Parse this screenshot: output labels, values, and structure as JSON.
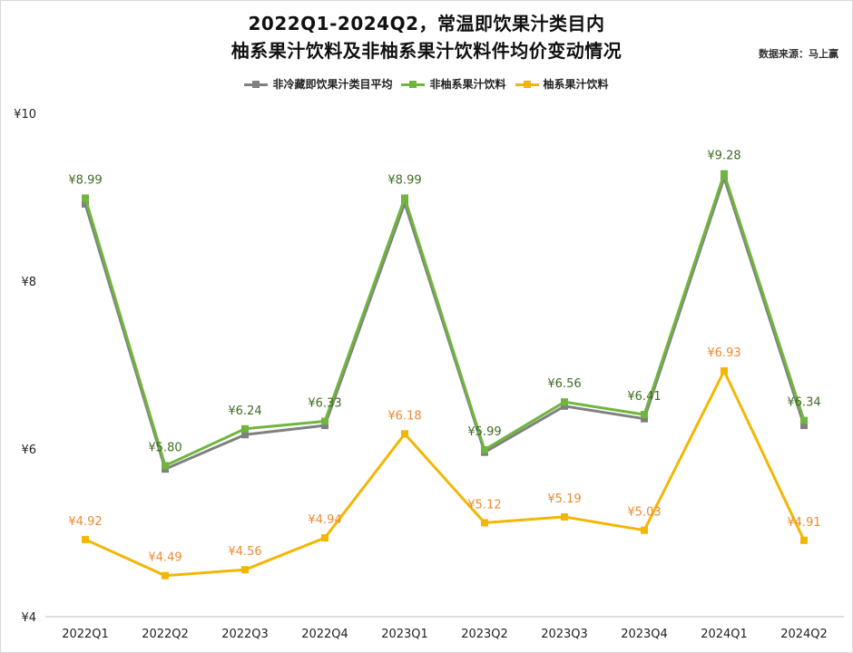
{
  "title_line1": "2022Q1-2024Q2，常温即饮果汁类目内",
  "title_line2": "柚系果汁饮料及非柚系果汁饮料件均价变动情况",
  "source": "数据来源：马上赢",
  "colors": {
    "avg": "#808080",
    "non_citrus": "#70b53e",
    "citrus": "#f2b705",
    "non_citrus_label": "#3f6b22",
    "citrus_label": "#ed8a2f",
    "axis": "#222222"
  },
  "chart_data": {
    "type": "line",
    "title": "2022Q1-2024Q2，常温即饮果汁类目内柚系果汁饮料及非柚系果汁饮料件均价变动情况",
    "xlabel": "",
    "ylabel": "",
    "ylim": [
      4,
      10
    ],
    "yticks": [
      4,
      6,
      8,
      10
    ],
    "ytick_labels": [
      "¥4",
      "¥6",
      "¥8",
      "¥10"
    ],
    "grid": false,
    "legend_position": "top",
    "categories": [
      "2022Q1",
      "2022Q2",
      "2022Q3",
      "2022Q4",
      "2023Q1",
      "2023Q2",
      "2023Q3",
      "2023Q4",
      "2024Q1",
      "2024Q2"
    ],
    "series": [
      {
        "key": "avg",
        "name": "非冷藏即饮果汁类目平均",
        "values": [
          8.92,
          5.76,
          6.17,
          6.28,
          8.93,
          5.96,
          6.51,
          6.36,
          9.23,
          6.28
        ],
        "labels": null
      },
      {
        "key": "non_citrus",
        "name": "非柚系果汁饮料",
        "values": [
          8.99,
          5.8,
          6.24,
          6.33,
          8.99,
          5.99,
          6.56,
          6.41,
          9.28,
          6.34
        ],
        "labels": [
          "¥8.99",
          "¥5.80",
          "¥6.24",
          "¥6.33",
          "¥8.99",
          "¥5.99",
          "¥6.56",
          "¥6.41",
          "¥9.28",
          "¥6.34"
        ]
      },
      {
        "key": "citrus",
        "name": "柚系果汁饮料",
        "values": [
          4.92,
          4.49,
          4.56,
          4.94,
          6.18,
          5.12,
          5.19,
          5.03,
          6.93,
          4.91
        ],
        "labels": [
          "¥4.92",
          "¥4.49",
          "¥4.56",
          "¥4.94",
          "¥6.18",
          "¥5.12",
          "¥5.19",
          "¥5.03",
          "¥6.93",
          "¥4.91"
        ]
      }
    ]
  }
}
